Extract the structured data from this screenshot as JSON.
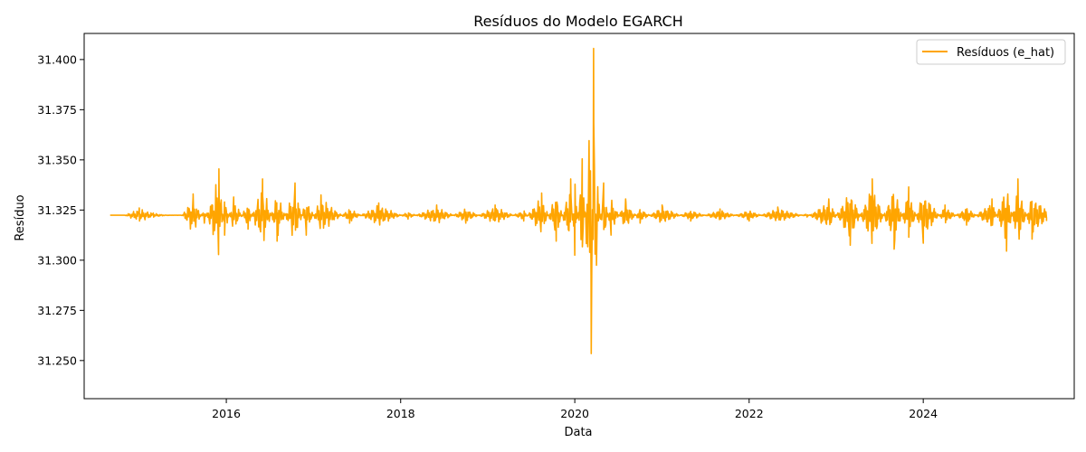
{
  "chart_data": {
    "type": "line",
    "title": "Resíduos do Modelo EGARCH",
    "xlabel": "Data",
    "ylabel": "Resíduo",
    "xlim": [
      "2014-05-15",
      "2025-09-25"
    ],
    "ylim": [
      31.231,
      31.413
    ],
    "x_ticks": [
      "2016",
      "2018",
      "2020",
      "2022",
      "2024"
    ],
    "y_ticks": [
      "31.250",
      "31.275",
      "31.300",
      "31.325",
      "31.350",
      "31.375",
      "31.400"
    ],
    "grid": false,
    "legend_position": "top-right",
    "series": [
      {
        "name": "Resíduos (e_hat)",
        "color": "#ffa500",
        "x": [
          "2014-09-01",
          "2014-11-01",
          "2015-01-01",
          "2015-03-01",
          "2015-05-01",
          "2015-07-01",
          "2015-08-15",
          "2015-10-01",
          "2015-12-01",
          "2015-12-25",
          "2016-02-01",
          "2016-04-01",
          "2016-06-01",
          "2016-08-01",
          "2016-10-15",
          "2016-12-01",
          "2017-02-01",
          "2017-06-01",
          "2017-10-01",
          "2018-02-01",
          "2018-06-01",
          "2018-10-01",
          "2019-02-01",
          "2019-06-01",
          "2019-08-15",
          "2019-10-15",
          "2019-12-15",
          "2020-01-01",
          "2020-02-01",
          "2020-03-10",
          "2020-03-20",
          "2020-04-01",
          "2020-05-01",
          "2020-06-01",
          "2020-08-01",
          "2020-10-01",
          "2021-01-01",
          "2021-05-01",
          "2021-09-01",
          "2022-01-01",
          "2022-05-01",
          "2022-09-01",
          "2022-12-01",
          "2023-03-01",
          "2023-06-01",
          "2023-09-01",
          "2023-11-01",
          "2024-01-01",
          "2024-04-01",
          "2024-07-01",
          "2024-10-15",
          "2024-12-15",
          "2025-02-01",
          "2025-04-01",
          "2025-06-01"
        ],
        "y": [
          31.3224,
          31.3224,
          31.326,
          31.3235,
          31.3223,
          31.3225,
          31.333,
          31.3185,
          31.3455,
          31.3125,
          31.3315,
          31.3155,
          31.3405,
          31.3095,
          31.3385,
          31.3125,
          31.3325,
          31.3185,
          31.3285,
          31.3205,
          31.3275,
          31.3185,
          31.3275,
          31.3195,
          31.3335,
          31.3095,
          31.3405,
          31.3025,
          31.3505,
          31.2535,
          31.4055,
          31.2975,
          31.3385,
          31.3125,
          31.3305,
          31.3185,
          31.3275,
          31.3195,
          31.3255,
          31.3195,
          31.3265,
          31.3215,
          31.3305,
          31.3075,
          31.3405,
          31.3055,
          31.3365,
          31.3085,
          31.3275,
          31.3175,
          31.3305,
          31.3045,
          31.3405,
          31.3105,
          31.3195
        ]
      }
    ]
  }
}
